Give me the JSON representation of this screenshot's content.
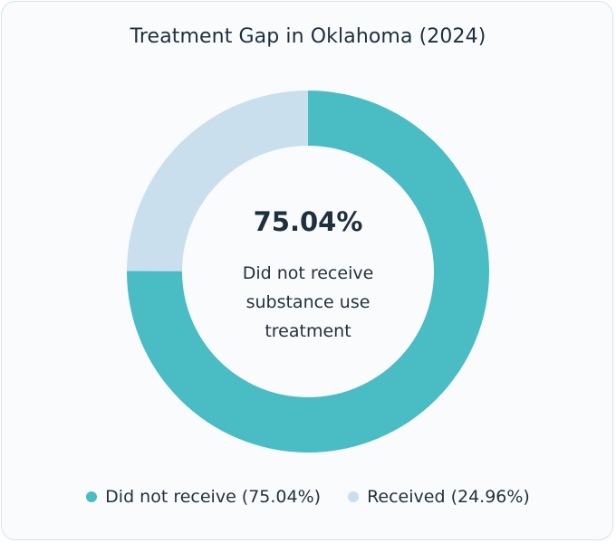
{
  "chart_data": {
    "type": "pie",
    "title": "Treatment Gap in Oklahoma (2024)",
    "center_label": {
      "value": "75.04%",
      "caption": "Did not receive substance use treatment"
    },
    "slices": [
      {
        "name": "Did not receive",
        "value": 75.04,
        "color": "#4abcc3",
        "legend_text": "Did not receive (75.04%)"
      },
      {
        "name": "Received",
        "value": 24.96,
        "color": "#c9dfed",
        "legend_text": "Received (24.96%)"
      }
    ],
    "legend_position": "bottom",
    "donut": true
  }
}
